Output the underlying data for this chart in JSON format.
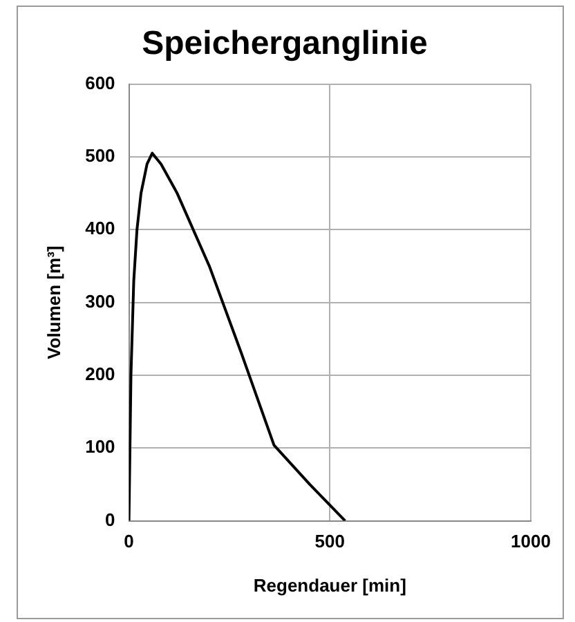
{
  "chart_data": {
    "type": "line",
    "title": "Speicherganglinie",
    "xlabel": "Regendauer [min]",
    "ylabel": "Volumen [m³]",
    "series": [
      {
        "color": "#000000",
        "x": [
          0,
          5,
          12,
          20,
          30,
          45,
          58,
          80,
          120,
          200,
          280,
          361,
          450,
          538
        ],
        "values": [
          0,
          200,
          330,
          400,
          450,
          490,
          505,
          490,
          450,
          350,
          230,
          104,
          50,
          0
        ]
      }
    ],
    "xlim": [
      0,
      1000
    ],
    "xticks": [
      0,
      500,
      1000
    ],
    "ylim": [
      0,
      600
    ],
    "yticks": [
      0,
      100,
      200,
      300,
      400,
      500,
      600
    ],
    "grid": true,
    "legend": false,
    "marker": "none",
    "line_style": "solid"
  }
}
